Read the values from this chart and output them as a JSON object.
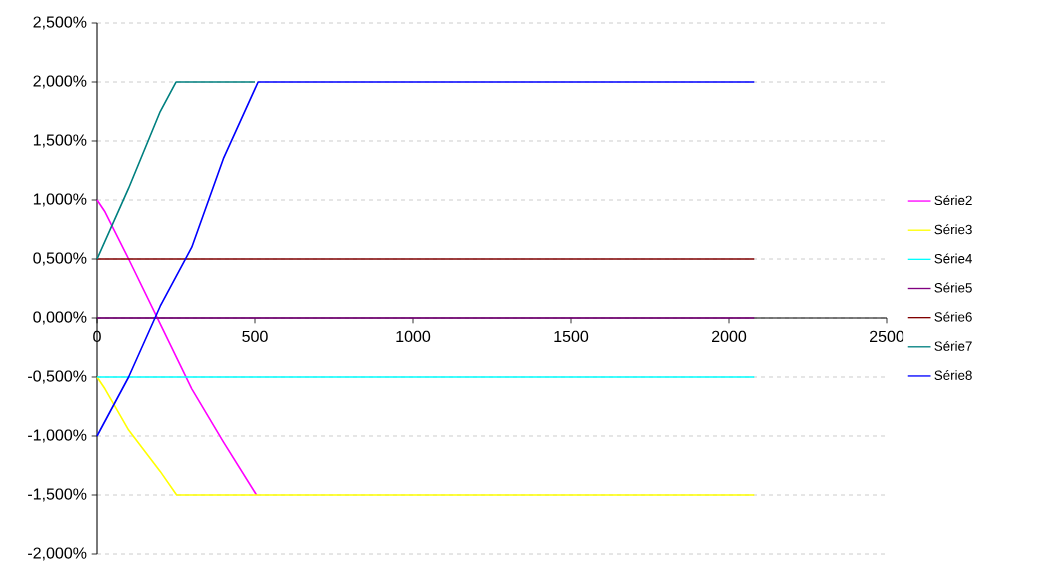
{
  "chart_data": {
    "type": "line",
    "xlim": [
      0,
      2500
    ],
    "xticks": [
      0,
      500,
      1000,
      1500,
      2000,
      2500
    ],
    "ylim": [
      -2.0,
      2.5
    ],
    "yticks": [
      {
        "value": -2.0,
        "label": "-2,000%"
      },
      {
        "value": -1.5,
        "label": "-1,500%"
      },
      {
        "value": -1.0,
        "label": "-1,000%"
      },
      {
        "value": -0.5,
        "label": "-0,500%"
      },
      {
        "value": 0,
        "label": "0,000%"
      },
      {
        "value": 0.5,
        "label": "0,500%"
      },
      {
        "value": 1.0,
        "label": "1,000%"
      },
      {
        "value": 1.5,
        "label": "1,500%"
      },
      {
        "value": 2.0,
        "label": "2,000%"
      },
      {
        "value": 2.5,
        "label": "2,500%"
      }
    ],
    "grid": "y",
    "legend": "right",
    "marker": "none",
    "line_style": "solid",
    "series": [
      {
        "name": "Série2",
        "color": "#ff00ff",
        "x": [
          0,
          25,
          100,
          200,
          300,
          400,
          505
        ],
        "values": [
          1.0,
          0.9,
          0.5,
          -0.05,
          -0.6,
          -1.05,
          -1.5
        ]
      },
      {
        "name": "Série3",
        "color": "#ffff00",
        "x": [
          0,
          25,
          100,
          200,
          252,
          2080
        ],
        "values": [
          -0.5,
          -0.6,
          -0.95,
          -1.3,
          -1.5,
          -1.5
        ]
      },
      {
        "name": "Série4",
        "color": "#00ffff",
        "x": [
          0,
          2080
        ],
        "values": [
          -0.5,
          -0.5
        ]
      },
      {
        "name": "Série5",
        "color": "#800080",
        "x": [
          0,
          2080
        ],
        "values": [
          0,
          0
        ]
      },
      {
        "name": "Série6",
        "color": "#800000",
        "x": [
          0,
          2080
        ],
        "values": [
          0.5,
          0.5
        ]
      },
      {
        "name": "Série7",
        "color": "#008080",
        "x": [
          0,
          100,
          200,
          250,
          260,
          500
        ],
        "values": [
          0.5,
          1.1,
          1.75,
          2.0,
          2.0,
          2.0
        ]
      },
      {
        "name": "Série8",
        "color": "#0000ff",
        "x": [
          0,
          100,
          200,
          300,
          400,
          510,
          2080
        ],
        "values": [
          -1.0,
          -0.5,
          0.1,
          0.6,
          1.35,
          2.0,
          2.0
        ]
      }
    ]
  }
}
